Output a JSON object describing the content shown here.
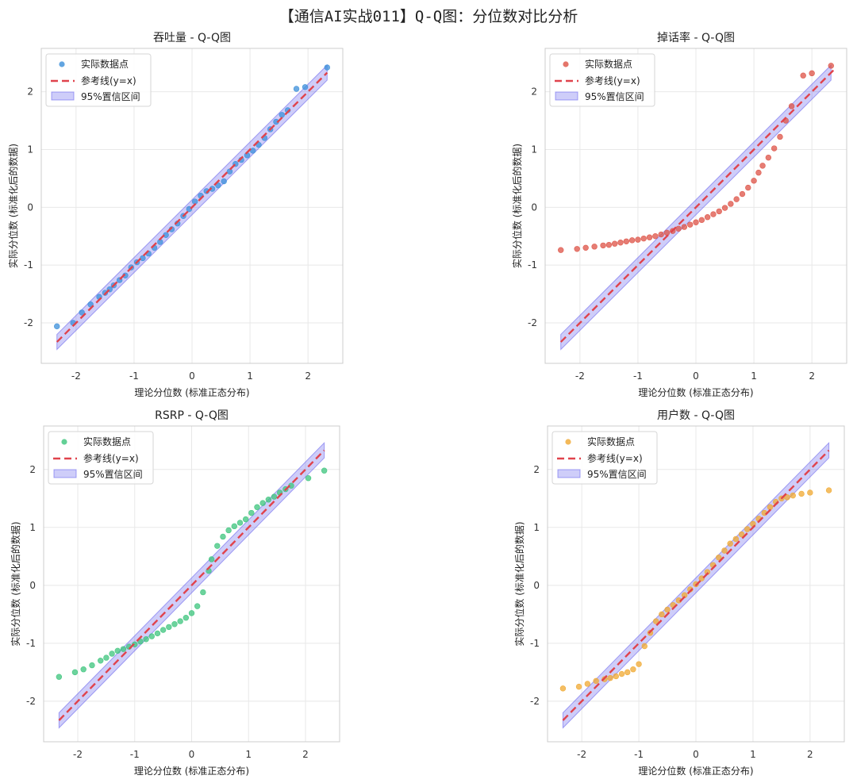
{
  "figure": {
    "title": "【通信AI实战011】Q-Q图：分位数对比分析"
  },
  "colors": {
    "reference_line": "#e0434c",
    "band": "#6b66ee",
    "grid": "#e8e8e8",
    "axes_frame": "#cccccc"
  },
  "chart_data": [
    {
      "type": "scatter",
      "title": "吞吐量 - Q-Q图",
      "xlabel": "理论分位数 (标准正态分布)",
      "ylabel": "实际分位数 (标准化后的数据)",
      "xlim": [
        -2.6,
        2.6
      ],
      "ylim": [
        -2.7,
        2.75
      ],
      "xticks": [
        -2,
        -1,
        0,
        1,
        2
      ],
      "yticks": [
        -2,
        -1,
        0,
        1,
        2
      ],
      "grid": true,
      "legend_position": "top-left",
      "legend": [
        "实际数据点",
        "参考线(y=x)",
        "95%置信区间"
      ],
      "series": [
        {
          "name": "实际数据点",
          "color": "#3b8fd9",
          "points": [
            [
              -2.33,
              -2.06
            ],
            [
              -2.05,
              -2.0
            ],
            [
              -1.9,
              -1.82
            ],
            [
              -1.75,
              -1.68
            ],
            [
              -1.6,
              -1.55
            ],
            [
              -1.5,
              -1.48
            ],
            [
              -1.42,
              -1.42
            ],
            [
              -1.35,
              -1.35
            ],
            [
              -1.25,
              -1.26
            ],
            [
              -1.15,
              -1.18
            ],
            [
              -1.05,
              -1.04
            ],
            [
              -0.95,
              -0.95
            ],
            [
              -0.85,
              -0.88
            ],
            [
              -0.75,
              -0.8
            ],
            [
              -0.65,
              -0.7
            ],
            [
              -0.55,
              -0.6
            ],
            [
              -0.45,
              -0.48
            ],
            [
              -0.35,
              -0.38
            ],
            [
              -0.25,
              -0.28
            ],
            [
              -0.15,
              -0.15
            ],
            [
              -0.05,
              -0.03
            ],
            [
              0.05,
              0.1
            ],
            [
              0.15,
              0.2
            ],
            [
              0.25,
              0.28
            ],
            [
              0.35,
              0.32
            ],
            [
              0.45,
              0.38
            ],
            [
              0.55,
              0.45
            ],
            [
              0.65,
              0.62
            ],
            [
              0.75,
              0.75
            ],
            [
              0.85,
              0.82
            ],
            [
              0.95,
              0.9
            ],
            [
              1.05,
              0.98
            ],
            [
              1.15,
              1.08
            ],
            [
              1.25,
              1.2
            ],
            [
              1.35,
              1.35
            ],
            [
              1.45,
              1.48
            ],
            [
              1.55,
              1.6
            ],
            [
              1.65,
              1.68
            ],
            [
              1.8,
              2.05
            ],
            [
              1.95,
              2.08
            ],
            [
              2.33,
              2.42
            ]
          ]
        },
        {
          "name": "参考线(y=x)",
          "kind": "reference",
          "x": [
            -2.33,
            2.33
          ],
          "y": [
            -2.33,
            2.33
          ]
        },
        {
          "name": "95%置信区间",
          "kind": "band",
          "x": [
            -2.33,
            2.33
          ],
          "halfwidth": 0.13
        }
      ]
    },
    {
      "type": "scatter",
      "title": "掉话率 - Q-Q图",
      "xlabel": "理论分位数 (标准正态分布)",
      "ylabel": "实际分位数 (标准化后的数据)",
      "xlim": [
        -2.6,
        2.6
      ],
      "ylim": [
        -2.7,
        2.75
      ],
      "xticks": [
        -2,
        -1,
        0,
        1,
        2
      ],
      "yticks": [
        -2,
        -1,
        0,
        1,
        2
      ],
      "grid": true,
      "legend_position": "top-left",
      "legend": [
        "实际数据点",
        "参考线(y=x)",
        "95%置信区间"
      ],
      "series": [
        {
          "name": "实际数据点",
          "color": "#dd5245",
          "points": [
            [
              -2.33,
              -0.74
            ],
            [
              -2.05,
              -0.72
            ],
            [
              -1.9,
              -0.7
            ],
            [
              -1.75,
              -0.68
            ],
            [
              -1.6,
              -0.66
            ],
            [
              -1.5,
              -0.65
            ],
            [
              -1.4,
              -0.63
            ],
            [
              -1.3,
              -0.61
            ],
            [
              -1.2,
              -0.59
            ],
            [
              -1.1,
              -0.57
            ],
            [
              -1.0,
              -0.56
            ],
            [
              -0.9,
              -0.54
            ],
            [
              -0.8,
              -0.52
            ],
            [
              -0.7,
              -0.5
            ],
            [
              -0.6,
              -0.47
            ],
            [
              -0.5,
              -0.44
            ],
            [
              -0.4,
              -0.41
            ],
            [
              -0.3,
              -0.37
            ],
            [
              -0.2,
              -0.34
            ],
            [
              -0.1,
              -0.3
            ],
            [
              0.0,
              -0.26
            ],
            [
              0.1,
              -0.22
            ],
            [
              0.2,
              -0.17
            ],
            [
              0.3,
              -0.12
            ],
            [
              0.4,
              -0.07
            ],
            [
              0.5,
              -0.01
            ],
            [
              0.6,
              0.06
            ],
            [
              0.7,
              0.14
            ],
            [
              0.8,
              0.23
            ],
            [
              0.9,
              0.34
            ],
            [
              1.0,
              0.46
            ],
            [
              1.08,
              0.6
            ],
            [
              1.15,
              0.72
            ],
            [
              1.25,
              0.86
            ],
            [
              1.35,
              1.02
            ],
            [
              1.45,
              1.22
            ],
            [
              1.55,
              1.5
            ],
            [
              1.65,
              1.75
            ],
            [
              1.85,
              2.28
            ],
            [
              2.0,
              2.32
            ],
            [
              2.33,
              2.45
            ]
          ]
        },
        {
          "name": "参考线(y=x)",
          "kind": "reference",
          "x": [
            -2.33,
            2.4
          ],
          "y": [
            -2.33,
            2.4
          ]
        },
        {
          "name": "95%置信区间",
          "kind": "band",
          "x": [
            -2.33,
            2.33
          ],
          "halfwidth": 0.13
        }
      ]
    },
    {
      "type": "scatter",
      "title": "RSRP - Q-Q图",
      "xlabel": "理论分位数 (标准正态分布)",
      "ylabel": "实际分位数 (标准化后的数据)",
      "xlim": [
        -2.6,
        2.6
      ],
      "ylim": [
        -2.7,
        2.75
      ],
      "xticks": [
        -2,
        -1,
        0,
        1,
        2
      ],
      "yticks": [
        -2,
        -1,
        0,
        1,
        2
      ],
      "grid": true,
      "legend_position": "top-left",
      "legend": [
        "实际数据点",
        "参考线(y=x)",
        "95%置信区间"
      ],
      "series": [
        {
          "name": "实际数据点",
          "color": "#3cc47c",
          "points": [
            [
              -2.33,
              -1.58
            ],
            [
              -2.05,
              -1.5
            ],
            [
              -1.9,
              -1.45
            ],
            [
              -1.75,
              -1.38
            ],
            [
              -1.6,
              -1.3
            ],
            [
              -1.5,
              -1.25
            ],
            [
              -1.4,
              -1.18
            ],
            [
              -1.3,
              -1.13
            ],
            [
              -1.2,
              -1.1
            ],
            [
              -1.1,
              -1.06
            ],
            [
              -1.0,
              -1.02
            ],
            [
              -0.9,
              -0.97
            ],
            [
              -0.8,
              -0.93
            ],
            [
              -0.7,
              -0.88
            ],
            [
              -0.6,
              -0.83
            ],
            [
              -0.5,
              -0.77
            ],
            [
              -0.4,
              -0.72
            ],
            [
              -0.3,
              -0.67
            ],
            [
              -0.2,
              -0.62
            ],
            [
              -0.1,
              -0.56
            ],
            [
              0.0,
              -0.48
            ],
            [
              0.1,
              -0.36
            ],
            [
              0.2,
              -0.12
            ],
            [
              0.3,
              0.25
            ],
            [
              0.35,
              0.45
            ],
            [
              0.45,
              0.68
            ],
            [
              0.55,
              0.84
            ],
            [
              0.65,
              0.95
            ],
            [
              0.75,
              1.02
            ],
            [
              0.85,
              1.08
            ],
            [
              0.95,
              1.14
            ],
            [
              1.05,
              1.25
            ],
            [
              1.15,
              1.35
            ],
            [
              1.25,
              1.42
            ],
            [
              1.35,
              1.48
            ],
            [
              1.45,
              1.53
            ],
            [
              1.55,
              1.6
            ],
            [
              1.65,
              1.66
            ],
            [
              1.75,
              1.72
            ],
            [
              2.05,
              1.85
            ],
            [
              2.33,
              1.98
            ]
          ]
        },
        {
          "name": "参考线(y=x)",
          "kind": "reference",
          "x": [
            -2.33,
            2.33
          ],
          "y": [
            -2.33,
            2.33
          ]
        },
        {
          "name": "95%置信区间",
          "kind": "band",
          "x": [
            -2.33,
            2.33
          ],
          "halfwidth": 0.13
        }
      ]
    },
    {
      "type": "scatter",
      "title": "用户数 - Q-Q图",
      "xlabel": "理论分位数 (标准正态分布)",
      "ylabel": "实际分位数 (标准化后的数据)",
      "xlim": [
        -2.6,
        2.6
      ],
      "ylim": [
        -2.7,
        2.75
      ],
      "xticks": [
        -2,
        -1,
        0,
        1,
        2
      ],
      "yticks": [
        -2,
        -1,
        0,
        1,
        2
      ],
      "grid": true,
      "legend_position": "top-left",
      "legend": [
        "实际数据点",
        "参考线(y=x)",
        "95%置信区间"
      ],
      "series": [
        {
          "name": "实际数据点",
          "color": "#f0a830",
          "points": [
            [
              -2.33,
              -1.78
            ],
            [
              -2.05,
              -1.75
            ],
            [
              -1.9,
              -1.7
            ],
            [
              -1.75,
              -1.65
            ],
            [
              -1.6,
              -1.62
            ],
            [
              -1.5,
              -1.6
            ],
            [
              -1.4,
              -1.57
            ],
            [
              -1.3,
              -1.53
            ],
            [
              -1.2,
              -1.5
            ],
            [
              -1.1,
              -1.45
            ],
            [
              -1.0,
              -1.36
            ],
            [
              -0.9,
              -1.05
            ],
            [
              -0.8,
              -0.82
            ],
            [
              -0.7,
              -0.62
            ],
            [
              -0.6,
              -0.5
            ],
            [
              -0.5,
              -0.42
            ],
            [
              -0.4,
              -0.34
            ],
            [
              -0.3,
              -0.26
            ],
            [
              -0.2,
              -0.17
            ],
            [
              -0.1,
              -0.07
            ],
            [
              0.0,
              0.02
            ],
            [
              0.1,
              0.12
            ],
            [
              0.2,
              0.23
            ],
            [
              0.3,
              0.35
            ],
            [
              0.4,
              0.48
            ],
            [
              0.5,
              0.6
            ],
            [
              0.6,
              0.72
            ],
            [
              0.7,
              0.8
            ],
            [
              0.8,
              0.88
            ],
            [
              0.9,
              0.97
            ],
            [
              1.0,
              1.06
            ],
            [
              1.1,
              1.15
            ],
            [
              1.2,
              1.25
            ],
            [
              1.3,
              1.35
            ],
            [
              1.4,
              1.44
            ],
            [
              1.5,
              1.5
            ],
            [
              1.6,
              1.52
            ],
            [
              1.7,
              1.55
            ],
            [
              1.85,
              1.58
            ],
            [
              2.0,
              1.6
            ],
            [
              2.33,
              1.64
            ]
          ]
        },
        {
          "name": "参考线(y=x)",
          "kind": "reference",
          "x": [
            -2.33,
            2.33
          ],
          "y": [
            -2.33,
            2.33
          ]
        },
        {
          "name": "95%置信区间",
          "kind": "band",
          "x": [
            -2.33,
            2.33
          ],
          "halfwidth": 0.13
        }
      ]
    }
  ]
}
